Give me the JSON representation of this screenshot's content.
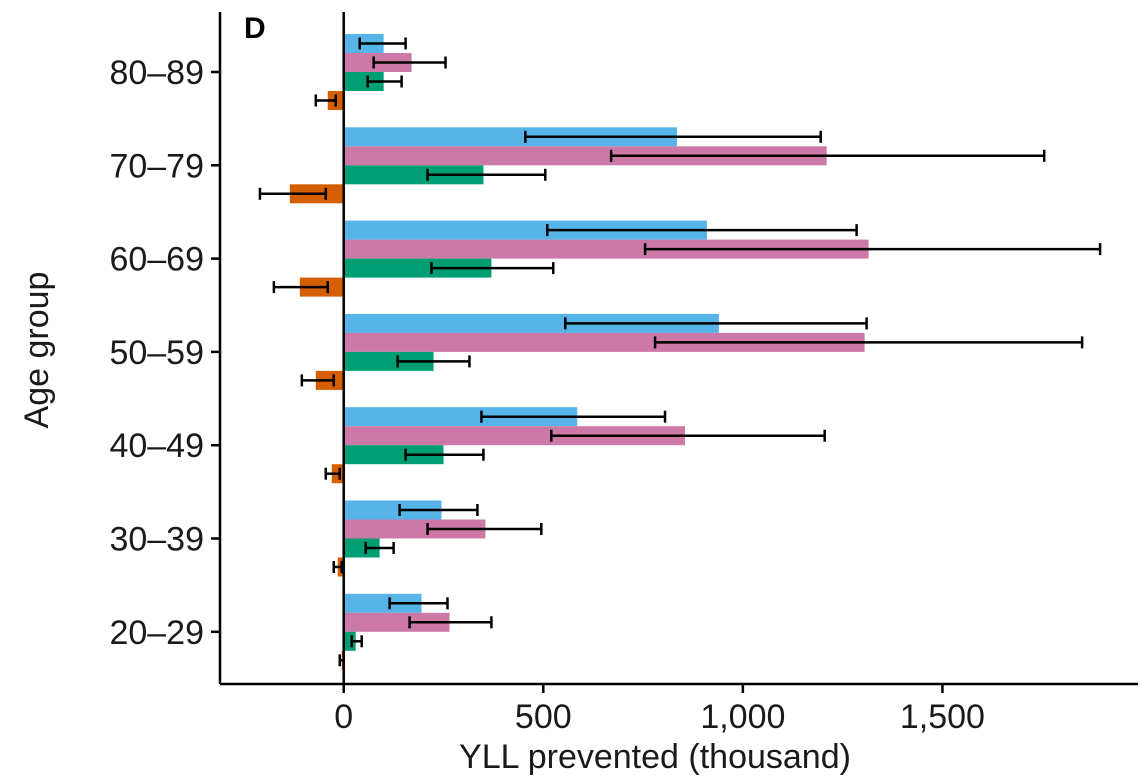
{
  "chart_data": {
    "type": "bar",
    "orientation": "horizontal",
    "panel_label": "D",
    "xlabel": "YLL prevented (thousand)",
    "ylabel": "Age group",
    "xlim": [
      -310,
      1990
    ],
    "xticks": [
      0,
      500,
      1000,
      1500
    ],
    "xtick_labels": [
      "0",
      "500",
      "1,000",
      "1,500"
    ],
    "categories": [
      "80–89",
      "70–79",
      "60–69",
      "50–59",
      "40–49",
      "30–39",
      "20–29"
    ],
    "series": [
      {
        "color": "#56B4E9",
        "values": [
          100,
          835,
          910,
          940,
          585,
          245,
          195
        ],
        "err_low": [
          40,
          455,
          510,
          555,
          345,
          140,
          115
        ],
        "err_high": [
          155,
          1195,
          1285,
          1310,
          805,
          335,
          260
        ]
      },
      {
        "color": "#CC79A7",
        "values": [
          170,
          1210,
          1315,
          1305,
          855,
          355,
          265
        ],
        "err_low": [
          75,
          670,
          755,
          780,
          520,
          210,
          165
        ],
        "err_high": [
          255,
          1755,
          1895,
          1850,
          1205,
          495,
          370
        ]
      },
      {
        "color": "#009E73",
        "values": [
          100,
          350,
          370,
          225,
          250,
          90,
          30
        ],
        "err_low": [
          60,
          210,
          220,
          135,
          155,
          55,
          20
        ],
        "err_high": [
          145,
          505,
          525,
          315,
          350,
          125,
          45
        ]
      },
      {
        "color": "#D55E00",
        "values": [
          -40,
          -135,
          -110,
          -70,
          -30,
          -15,
          -5
        ],
        "err_low": [
          -70,
          -210,
          -175,
          -105,
          -45,
          -25,
          -10
        ],
        "err_high": [
          -20,
          -45,
          -40,
          -25,
          -10,
          -5,
          0
        ]
      }
    ]
  }
}
